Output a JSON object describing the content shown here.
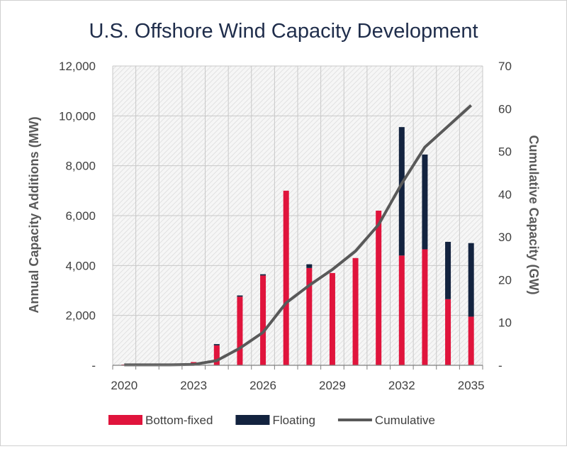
{
  "chart_data": {
    "type": "bar",
    "title": "U.S. Offshore Wind Capacity Development",
    "ylabel": "Annual Capacity Additions (MW)",
    "y2label": "Cumulative Capacity (GW)",
    "ylim": [
      0,
      12000
    ],
    "y2lim": [
      0,
      70
    ],
    "yticks": [
      "-",
      "2,000",
      "4,000",
      "6,000",
      "8,000",
      "10,000",
      "12,000"
    ],
    "y2ticks": [
      "-",
      "10",
      "20",
      "30",
      "40",
      "50",
      "60",
      "70"
    ],
    "xticks": [
      "2020",
      "2023",
      "2026",
      "2029",
      "2032",
      "2035"
    ],
    "x": [
      2020,
      2021,
      2022,
      2023,
      2024,
      2025,
      2026,
      2027,
      2028,
      2029,
      2030,
      2031,
      2032,
      2033,
      2034,
      2035
    ],
    "stacked": true,
    "grid": true,
    "legend_position": "bottom",
    "series": [
      {
        "name": "Bottom-fixed",
        "kind": "bar",
        "color": "#e0143c",
        "values": [
          30,
          0,
          0,
          130,
          800,
          2750,
          3600,
          7000,
          3900,
          3700,
          4300,
          6200,
          4400,
          4650,
          2650,
          1950
        ]
      },
      {
        "name": "Floating",
        "kind": "bar",
        "color": "#13233f",
        "values": [
          0,
          0,
          0,
          0,
          50,
          50,
          50,
          0,
          150,
          0,
          0,
          0,
          5150,
          3800,
          2300,
          2950
        ]
      },
      {
        "name": "Cumulative",
        "kind": "line",
        "axis": "right",
        "color": "#595959",
        "values": [
          0.1,
          0.1,
          0.1,
          0.2,
          1.1,
          4.0,
          7.7,
          14.6,
          18.7,
          22.4,
          26.7,
          32.9,
          42.5,
          51.0,
          55.9,
          60.8
        ]
      }
    ]
  }
}
